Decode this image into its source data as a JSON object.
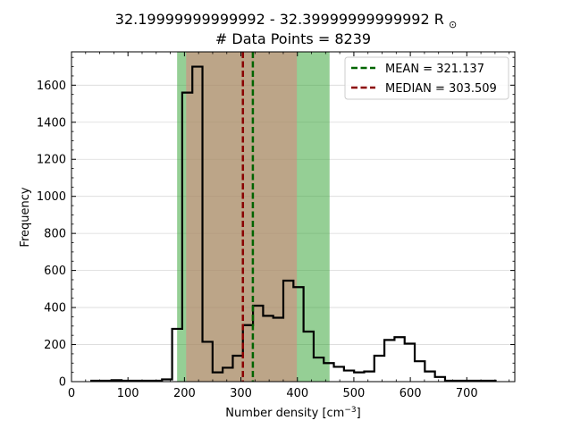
{
  "chart_data": {
    "type": "histogram",
    "title_line1": "32.19999999999992 - 32.39999999999992 R",
    "title_sun_symbol": "⊙",
    "title_line2": "# Data Points = 8239",
    "xlabel_main": "Number density [cm",
    "xlabel_sup": "−3",
    "xlabel_end": "]",
    "ylabel": "Frequency",
    "xlim": [
      0,
      785
    ],
    "ylim": [
      0,
      1780
    ],
    "xticks": [
      0,
      100,
      200,
      300,
      400,
      500,
      600,
      700
    ],
    "yticks": [
      0,
      200,
      400,
      600,
      800,
      1000,
      1200,
      1400,
      1600
    ],
    "grid": "horizontal",
    "bin_width": 17.9,
    "bin_edges_start": 35,
    "counts": [
      5,
      5,
      8,
      5,
      5,
      5,
      5,
      12,
      285,
      1560,
      1700,
      215,
      50,
      75,
      140,
      305,
      410,
      355,
      345,
      545,
      510,
      270,
      130,
      100,
      80,
      60,
      50,
      55,
      140,
      225,
      240,
      205,
      110,
      55,
      25,
      5,
      5,
      5,
      5,
      5
    ],
    "shaded_regions": [
      {
        "from": 187,
        "to": 457,
        "color": "#2ca02c",
        "alpha": 0.5
      },
      {
        "from": 203,
        "to": 399,
        "color": "#e47b7b",
        "alpha": 0.5
      }
    ],
    "lines": [
      {
        "label": "MEAN = 321.137",
        "value": 321.137,
        "color": "#006400"
      },
      {
        "label": "MEDIAN = 303.509",
        "value": 303.509,
        "color": "#8b0000"
      }
    ],
    "legend_position": "top-right"
  }
}
